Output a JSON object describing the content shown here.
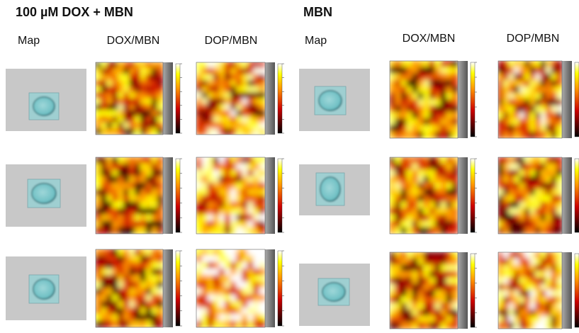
{
  "panels": [
    {
      "title": "100 µM DOX + MBN",
      "columns": [
        "Map",
        "DOX/MBN",
        "DOP/MBN"
      ]
    },
    {
      "title": "MBN",
      "columns": [
        "Map",
        "DOX/MBN",
        "DOP/MBN"
      ]
    }
  ]
}
